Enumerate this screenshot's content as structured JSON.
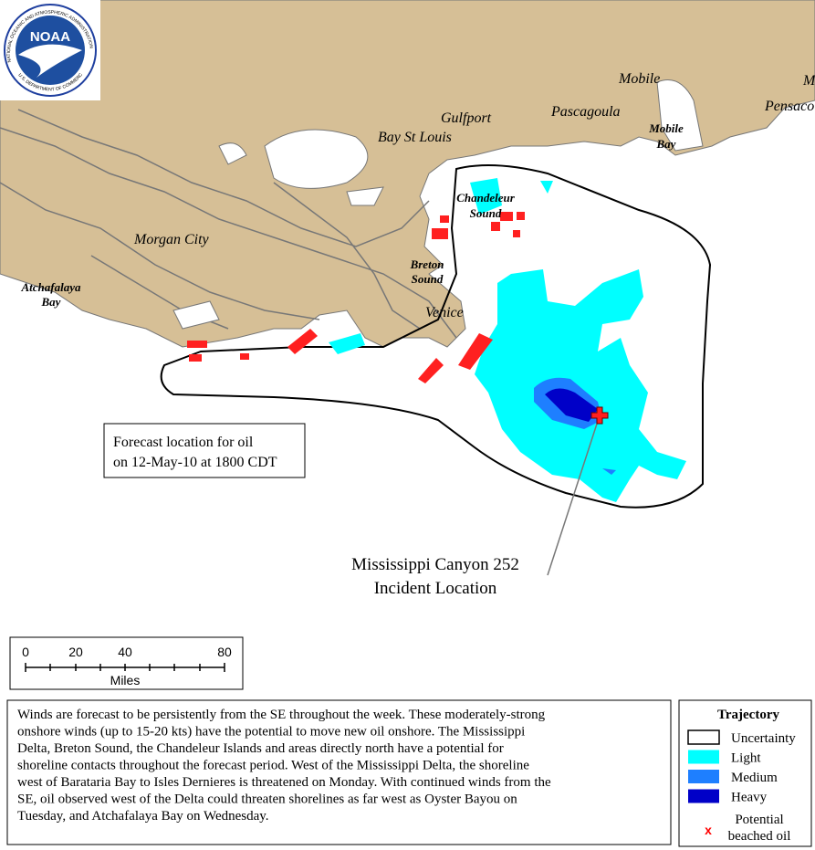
{
  "logo": {
    "name": "NOAA",
    "ring_top": "NATIONAL OCEANIC AND ATMOSPHERIC ADMINISTRATION",
    "ring_bottom": "U.S. DEPARTMENT OF COMMERCE"
  },
  "places": {
    "mobile": "Mobile",
    "m": "M",
    "pensacola": "Pensacola",
    "gulfport": "Gulfport",
    "pascagoula": "Pascagoula",
    "bay_st_louis": "Bay St Louis",
    "mobile_bay": [
      "Mobile",
      "Bay"
    ],
    "chandeleur_sound": [
      "Chandeleur",
      "Sound"
    ],
    "morgan_city": "Morgan City",
    "atchafalaya_bay": [
      "Atchafalaya",
      "Bay"
    ],
    "breton_sound": [
      "Breton",
      "Sound"
    ],
    "venice": "Venice"
  },
  "forecast_box": [
    "Forecast location for oil",
    "on 12-May-10 at 1800 CDT"
  ],
  "incident": [
    "Mississippi Canyon 252",
    "Incident Location"
  ],
  "scale": {
    "ticks": [
      "0",
      "20",
      "40",
      "80"
    ],
    "unit": "Miles"
  },
  "description": [
    "Winds are forecast to be persistently from the SE throughout the week. These moderately-strong",
    "onshore winds (up to 15-20 kts) have the potential to move new oil onshore. The Mississippi",
    "Delta, Breton Sound, the Chandeleur Islands and areas directly north have a potential for",
    "shoreline contacts throughout the forecast period.  West of the Mississippi Delta, the shoreline",
    "west of Barataria Bay to Isles Dernieres is threatened on Monday. With continued winds from the",
    "SE, oil observed west of the Delta could threaten shorelines as far west as Oyster Bayou on",
    "Tuesday, and Atchafalaya Bay on Wednesday."
  ],
  "legend": {
    "title": "Trajectory",
    "items": [
      "Uncertainty",
      "Light",
      "Medium",
      "Heavy"
    ],
    "beached": [
      "Potential",
      "beached oil"
    ]
  }
}
